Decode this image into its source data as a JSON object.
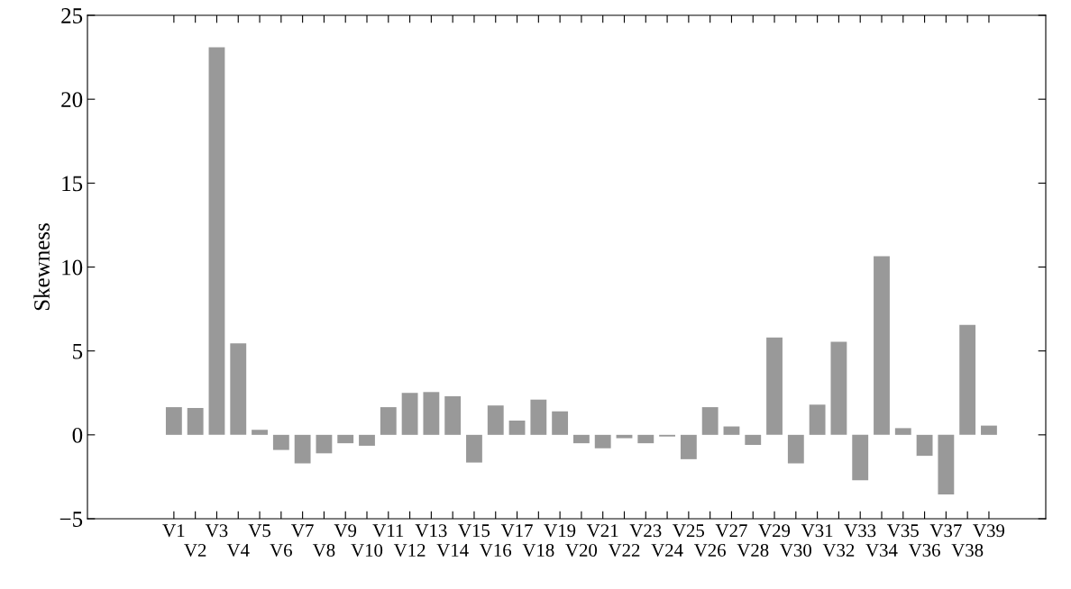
{
  "chart_data": {
    "type": "bar",
    "ylabel": "Skewness",
    "categories": [
      "V1",
      "V2",
      "V3",
      "V4",
      "V5",
      "V6",
      "V7",
      "V8",
      "V9",
      "V10",
      "V11",
      "V12",
      "V13",
      "V14",
      "V15",
      "V16",
      "V17",
      "V18",
      "V19",
      "V20",
      "V21",
      "V22",
      "V23",
      "V24",
      "V25",
      "V26",
      "V27",
      "V28",
      "V29",
      "V30",
      "V31",
      "V32",
      "V33",
      "V34",
      "V35",
      "V36",
      "V37",
      "V38",
      "V39"
    ],
    "values": [
      1.65,
      1.6,
      23.1,
      5.45,
      0.3,
      -0.9,
      -1.7,
      -1.1,
      -0.5,
      -0.65,
      1.65,
      2.5,
      2.55,
      2.3,
      -1.65,
      1.75,
      0.85,
      2.1,
      1.4,
      -0.5,
      -0.8,
      -0.2,
      -0.5,
      -0.1,
      -1.45,
      1.65,
      0.5,
      -0.6,
      5.8,
      -1.7,
      1.8,
      5.55,
      -2.7,
      10.65,
      0.4,
      -1.25,
      -3.55,
      6.55,
      0.55
    ],
    "color": "#999999",
    "ylim": [
      -5,
      25
    ],
    "yticks": [
      {
        "value": -5,
        "label": "−5"
      },
      0,
      5,
      10,
      15,
      20,
      25
    ],
    "grid": false
  }
}
